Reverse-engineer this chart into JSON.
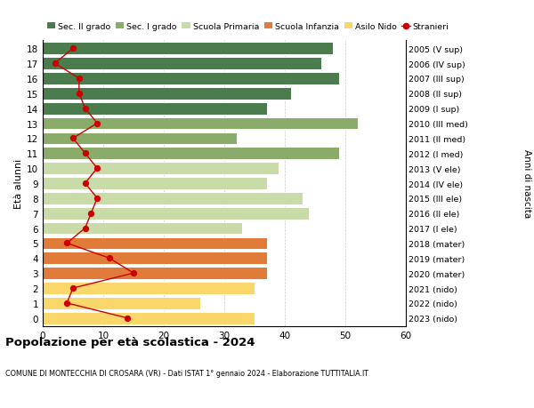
{
  "ages": [
    0,
    1,
    2,
    3,
    4,
    5,
    6,
    7,
    8,
    9,
    10,
    11,
    12,
    13,
    14,
    15,
    16,
    17,
    18
  ],
  "years_labels": [
    "2023 (nido)",
    "2022 (nido)",
    "2021 (nido)",
    "2020 (mater)",
    "2019 (mater)",
    "2018 (mater)",
    "2017 (I ele)",
    "2016 (II ele)",
    "2015 (III ele)",
    "2014 (IV ele)",
    "2013 (V ele)",
    "2012 (I med)",
    "2011 (II med)",
    "2010 (III med)",
    "2009 (I sup)",
    "2008 (II sup)",
    "2007 (III sup)",
    "2006 (IV sup)",
    "2005 (V sup)"
  ],
  "bar_values": [
    35,
    26,
    35,
    37,
    37,
    37,
    33,
    44,
    43,
    37,
    39,
    49,
    32,
    52,
    37,
    41,
    49,
    46,
    48
  ],
  "bar_colors": [
    "#f9d76b",
    "#f9d76b",
    "#f9d76b",
    "#e07b39",
    "#e07b39",
    "#e07b39",
    "#c8dba8",
    "#c8dba8",
    "#c8dba8",
    "#c8dba8",
    "#c8dba8",
    "#8aab6a",
    "#8aab6a",
    "#8aab6a",
    "#4a7c4e",
    "#4a7c4e",
    "#4a7c4e",
    "#4a7c4e",
    "#4a7c4e"
  ],
  "stranieri_values": [
    14,
    4,
    5,
    15,
    11,
    4,
    7,
    8,
    9,
    7,
    9,
    7,
    5,
    9,
    7,
    6,
    6,
    2,
    5
  ],
  "legend_labels": [
    "Sec. II grado",
    "Sec. I grado",
    "Scuola Primaria",
    "Scuola Infanzia",
    "Asilo Nido",
    "Stranieri"
  ],
  "legend_colors": [
    "#4a7c4e",
    "#8aab6a",
    "#c8dba8",
    "#e07b39",
    "#f9d76b",
    "#cc0000"
  ],
  "title": "Popolazione per età scolastica - 2024",
  "subtitle": "COMUNE DI MONTECCHIA DI CROSARA (VR) - Dati ISTAT 1° gennaio 2024 - Elaborazione TUTTITALIA.IT",
  "ylabel_left": "Età alunni",
  "ylabel_right": "Anni di nascita",
  "xlim": [
    0,
    60
  ],
  "xticks": [
    0,
    10,
    20,
    30,
    40,
    50,
    60
  ],
  "background_color": "#ffffff",
  "grid_color": "#cccccc"
}
